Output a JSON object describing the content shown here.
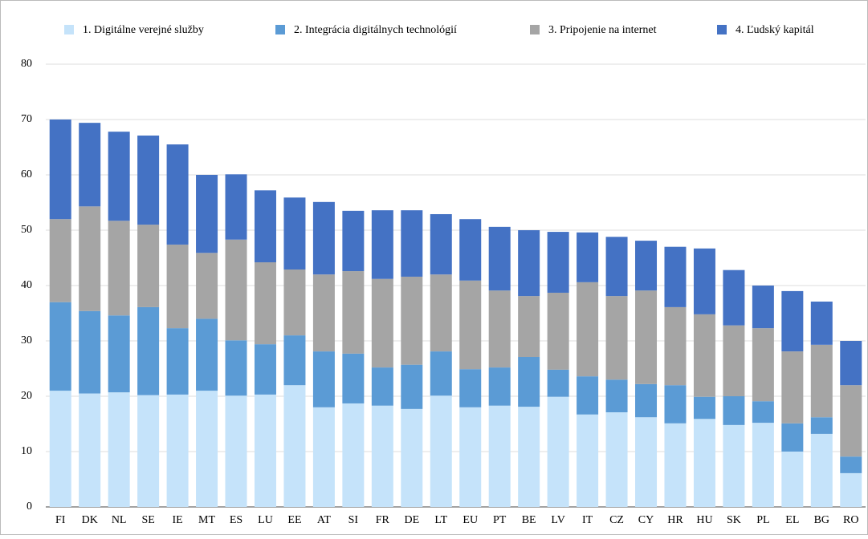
{
  "chart_data": {
    "type": "stacked_bar",
    "categories": [
      "FI",
      "DK",
      "NL",
      "SE",
      "IE",
      "MT",
      "ES",
      "LU",
      "EE",
      "AT",
      "SI",
      "FR",
      "DE",
      "LT",
      "EU",
      "PT",
      "BE",
      "LV",
      "IT",
      "CZ",
      "CY",
      "HR",
      "HU",
      "SK",
      "PL",
      "EL",
      "BG",
      "RO"
    ],
    "series": [
      {
        "name": "1. Digitálne verejné služby",
        "color": "#c5e3fa",
        "values": [
          21,
          20.5,
          20.7,
          20.2,
          20.3,
          21,
          20.1,
          20.3,
          22,
          18,
          18.7,
          18.3,
          17.7,
          20.1,
          18,
          18.3,
          18.1,
          19.9,
          16.7,
          17.1,
          16.2,
          15.1,
          15.9,
          14.8,
          15.2,
          10,
          13.2,
          6.1
        ]
      },
      {
        "name": "2. Integrácia digitálnych technológií",
        "color": "#5b9bd5",
        "values": [
          16,
          14.9,
          13.9,
          15.9,
          12,
          13,
          10,
          9.1,
          9,
          10.1,
          9,
          6.9,
          8,
          8,
          6.9,
          6.9,
          9,
          4.9,
          6.9,
          5.9,
          6,
          6.9,
          4,
          5.2,
          3.9,
          5.1,
          3,
          3
        ]
      },
      {
        "name": "3. Pripojenie na internet",
        "color": "#a5a5a5",
        "values": [
          15,
          18.9,
          17.1,
          14.9,
          15.1,
          11.9,
          18.2,
          14.8,
          11.9,
          13.9,
          14.9,
          16,
          15.9,
          13.9,
          16,
          13.9,
          11,
          13.9,
          17,
          15.1,
          16.9,
          14.1,
          14.9,
          12.8,
          13.2,
          13,
          13.1,
          12.9
        ]
      },
      {
        "name": "4. Ľudský kapitál",
        "color": "#4472c4",
        "values": [
          18,
          15.1,
          16.1,
          16.1,
          18.1,
          14.1,
          11.8,
          13,
          13,
          13.1,
          10.9,
          12.4,
          12,
          10.9,
          11.1,
          11.5,
          11.9,
          11,
          9,
          10.7,
          9,
          10.9,
          11.9,
          10,
          7.7,
          10.9,
          7.8,
          8
        ]
      }
    ],
    "ylim": [
      0,
      80
    ],
    "yticks": [
      0,
      10,
      20,
      30,
      40,
      50,
      60,
      70,
      80
    ],
    "grid": true
  }
}
